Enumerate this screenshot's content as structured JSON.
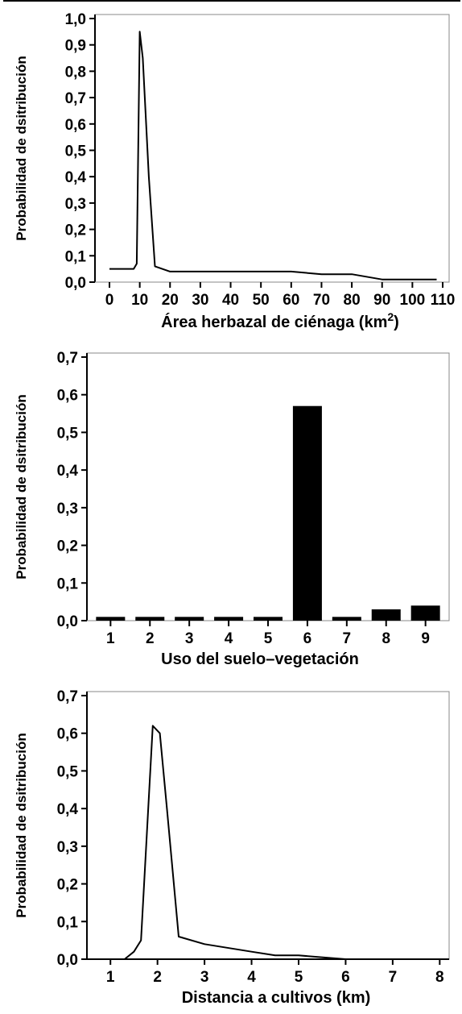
{
  "chart_data": [
    {
      "type": "line",
      "ylabel": "Probabilidad de dsitribución",
      "xlabel_main": "Área herbazal de ciénaga (km",
      "xlabel_sup": "2",
      "xlabel_end": ")",
      "xlim": [
        0,
        110
      ],
      "ylim": [
        0,
        1.0
      ],
      "xticks": [
        "0",
        "10",
        "20",
        "30",
        "40",
        "50",
        "60",
        "70",
        "80",
        "90",
        "100",
        "110"
      ],
      "yticks": [
        "0,0",
        "0,1",
        "0,2",
        "0,3",
        "0,4",
        "0,5",
        "0,6",
        "0,7",
        "0,8",
        "0,9",
        "1,0"
      ],
      "grid": false,
      "x": [
        0,
        8,
        9,
        10,
        11,
        13,
        15,
        20,
        30,
        40,
        50,
        60,
        70,
        80,
        90,
        100,
        108
      ],
      "y": [
        0.05,
        0.05,
        0.07,
        0.95,
        0.85,
        0.4,
        0.06,
        0.04,
        0.04,
        0.04,
        0.04,
        0.04,
        0.03,
        0.03,
        0.01,
        0.01,
        0.01
      ]
    },
    {
      "type": "bar",
      "ylabel": "Probabilidad de dsitribución",
      "xlabel": "Uso del suelo–vegetación",
      "categories": [
        "1",
        "2",
        "3",
        "4",
        "5",
        "6",
        "7",
        "8",
        "9"
      ],
      "values": [
        0.01,
        0.01,
        0.01,
        0.01,
        0.01,
        0.57,
        0.01,
        0.03,
        0.04
      ],
      "ylim": [
        0,
        0.7
      ],
      "yticks": [
        "0,0",
        "0,1",
        "0,2",
        "0,3",
        "0,4",
        "0,5",
        "0,6",
        "0,7"
      ],
      "grid": false
    },
    {
      "type": "line",
      "ylabel": "Probabilidad de dsitribución",
      "xlabel": "Distancia a cultivos (km)",
      "xlim": [
        0.5,
        8.2
      ],
      "ylim": [
        0,
        0.7
      ],
      "xticks": [
        "1",
        "2",
        "3",
        "4",
        "5",
        "6",
        "7",
        "8"
      ],
      "yticks": [
        "0,0",
        "0,1",
        "0,2",
        "0,3",
        "0,4",
        "0,5",
        "0,6",
        "0,7"
      ],
      "grid": false,
      "x": [
        1.0,
        1.3,
        1.5,
        1.65,
        1.9,
        2.05,
        2.2,
        2.45,
        3.0,
        4.0,
        4.5,
        5.0,
        6.0,
        7.0
      ],
      "y": [
        0.0,
        0.0,
        0.02,
        0.05,
        0.62,
        0.6,
        0.4,
        0.06,
        0.04,
        0.02,
        0.01,
        0.01,
        0.0,
        0.0
      ]
    }
  ]
}
